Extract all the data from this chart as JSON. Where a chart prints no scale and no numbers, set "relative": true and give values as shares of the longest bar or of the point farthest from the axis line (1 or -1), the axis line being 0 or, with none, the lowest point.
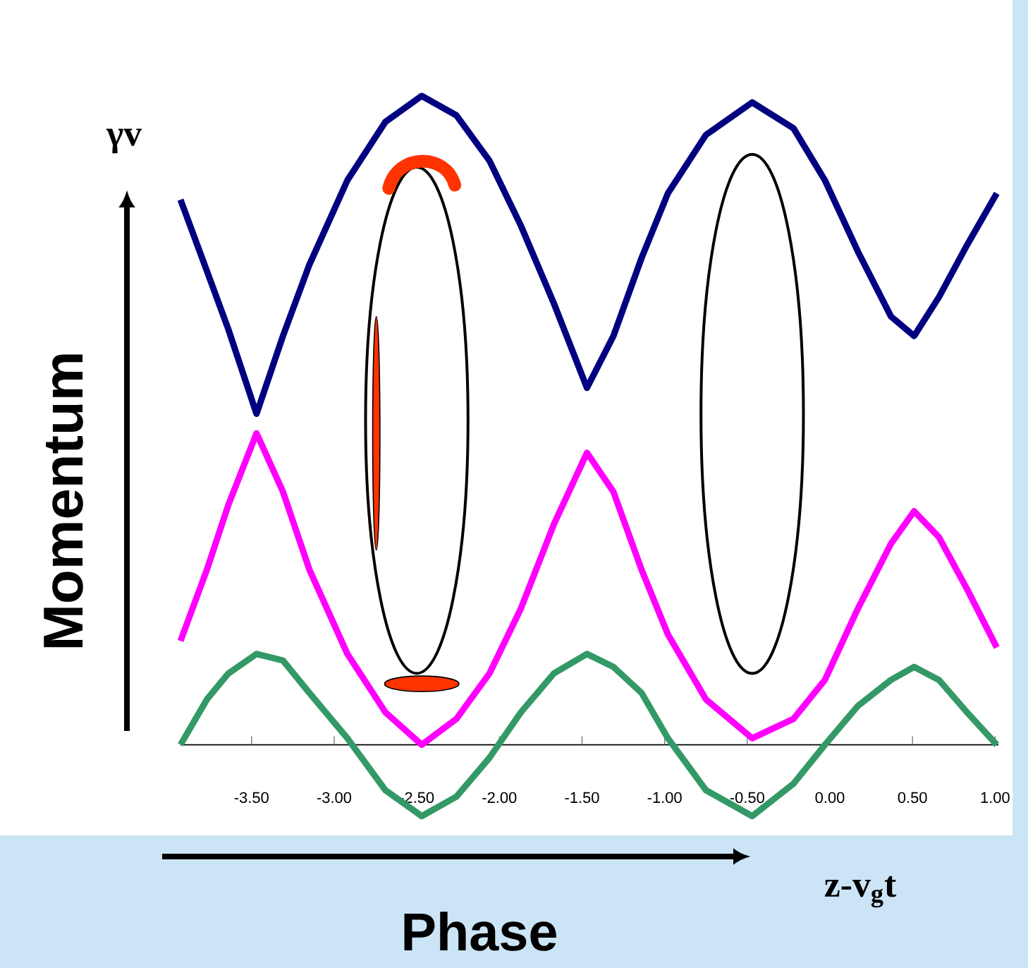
{
  "chart_data": {
    "type": "line",
    "relative": true,
    "ylabel": "Momentum",
    "annotations": [
      "γv",
      "z-v$_{g}$t",
      "Phase"
    ],
    "marker": "none",
    "line_style": "solid",
    "x": [
      -3.93,
      -3.77,
      -3.64,
      -3.47,
      -3.31,
      -3.15,
      -2.92,
      -2.69,
      -2.47,
      -2.26,
      -2.06,
      -1.87,
      -1.67,
      -1.47,
      -1.31,
      -1.14,
      -0.98,
      -0.75,
      -0.47,
      -0.22,
      -0.03,
      0.17,
      0.37,
      0.51,
      0.66,
      0.83,
      1.01
    ],
    "xlim": [
      -3.93,
      1.02
    ],
    "xticks": [
      {
        "value": -3.5,
        "label": "-3.50"
      },
      {
        "value": -3,
        "label": "-3.00"
      },
      {
        "value": -2.5,
        "label": "-2.50"
      },
      {
        "value": -2,
        "label": "-2.00"
      },
      {
        "value": -1.5,
        "label": "-1.50"
      },
      {
        "value": -1,
        "label": "-1.00"
      },
      {
        "value": -0.5,
        "label": "-0.50"
      },
      {
        "value": 0,
        "label": "0.00"
      },
      {
        "value": 0.5,
        "label": "0.50"
      },
      {
        "value": 1,
        "label": "1.00"
      }
    ],
    "series": [
      {
        "color": "#000080",
        "values": [
          0.84,
          0.73,
          0.64,
          0.51,
          0.63,
          0.74,
          0.87,
          0.96,
          1.0,
          0.97,
          0.9,
          0.8,
          0.68,
          0.55,
          0.63,
          0.75,
          0.85,
          0.94,
          0.99,
          0.95,
          0.87,
          0.76,
          0.66,
          0.63,
          0.69,
          0.77,
          0.85
        ]
      },
      {
        "color": "#ff00ff",
        "values": [
          0.16,
          0.27,
          0.37,
          0.48,
          0.39,
          0.27,
          0.14,
          0.05,
          0.0,
          0.04,
          0.11,
          0.21,
          0.34,
          0.45,
          0.39,
          0.27,
          0.17,
          0.07,
          0.01,
          0.04,
          0.1,
          0.21,
          0.31,
          0.36,
          0.32,
          0.24,
          0.15
        ]
      },
      {
        "color": "#339966",
        "values": [
          0.0,
          0.07,
          0.11,
          0.14,
          0.13,
          0.08,
          0.01,
          -0.07,
          -0.11,
          -0.08,
          -0.02,
          0.05,
          0.11,
          0.14,
          0.12,
          0.08,
          0.01,
          -0.07,
          -0.11,
          -0.06,
          0.0,
          0.06,
          0.1,
          0.12,
          0.1,
          0.05,
          0.0
        ]
      }
    ]
  }
}
